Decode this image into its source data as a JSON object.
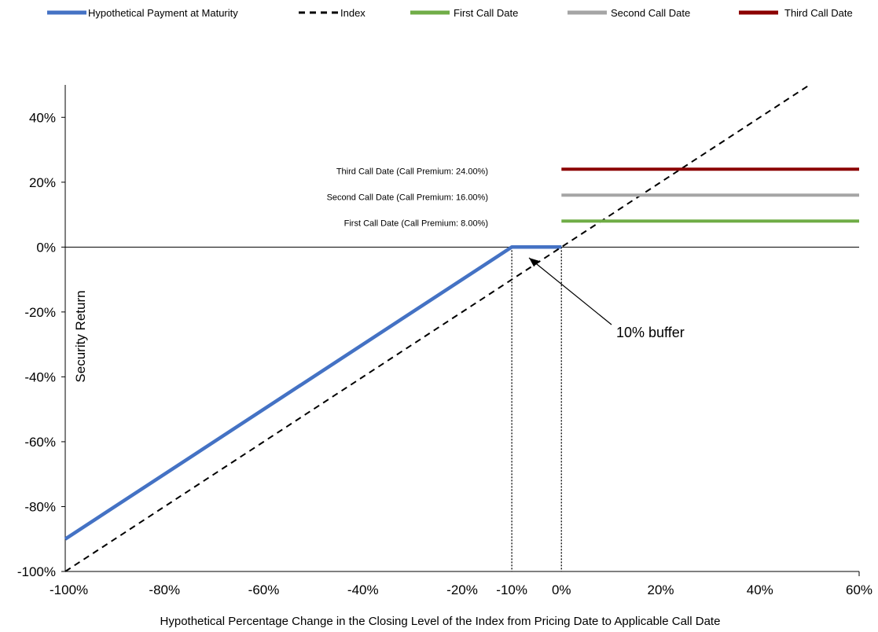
{
  "chart_data": {
    "type": "line",
    "title": "",
    "xlabel": "Hypothetical Percentage Change in the Closing Level of the Index from Pricing Date to Applicable Call Date",
    "ylabel": "Security Return",
    "xlim": [
      -100,
      60
    ],
    "ylim": [
      -100,
      50
    ],
    "x_ticks": [
      -100,
      -80,
      -60,
      -40,
      -20,
      -10,
      0,
      20,
      40,
      60
    ],
    "x_tick_labels": [
      "-100%",
      "-80%",
      "-60%",
      "-40%",
      "-20%",
      "-10%",
      "0%",
      "20%",
      "40%",
      "60%"
    ],
    "y_ticks": [
      -100,
      -80,
      -60,
      -40,
      -20,
      0,
      20,
      40
    ],
    "y_tick_labels": [
      "-100%",
      "-80%",
      "-60%",
      "-40%",
      "-20%",
      "0%",
      "20%",
      "40%"
    ],
    "grid": false,
    "legend_position": "top",
    "series": [
      {
        "name": "Hypothetical Payment at Maturity",
        "color": "#4472C4",
        "style": "solid",
        "x": [
          -100,
          -10,
          0
        ],
        "y": [
          -90,
          0,
          0
        ]
      },
      {
        "name": "Index",
        "color": "#000000",
        "style": "dashed",
        "x": [
          -100,
          50
        ],
        "y": [
          -100,
          50
        ]
      },
      {
        "name": "First Call Date",
        "color": "#70AD47",
        "style": "solid",
        "x": [
          0,
          60
        ],
        "y": [
          8,
          8
        ]
      },
      {
        "name": "Second Call Date",
        "color": "#A5A5A5",
        "style": "solid",
        "x": [
          0,
          60
        ],
        "y": [
          16,
          16
        ]
      },
      {
        "name": "Third Call Date",
        "color": "#8B0000",
        "style": "solid",
        "x": [
          0,
          60
        ],
        "y": [
          24,
          24
        ]
      }
    ],
    "reference_lines": [
      {
        "axis": "x",
        "value": -10,
        "style": "dotted"
      },
      {
        "axis": "x",
        "value": 0,
        "style": "dotted"
      }
    ],
    "annotations": [
      {
        "text": "Third Call Date (Call Premium: 24.00%)"
      },
      {
        "text": "Second Call Date (Call Premium: 16.00%)"
      },
      {
        "text": "First Call Date (Call Premium: 8.00%)"
      },
      {
        "text": "10% buffer"
      }
    ]
  }
}
